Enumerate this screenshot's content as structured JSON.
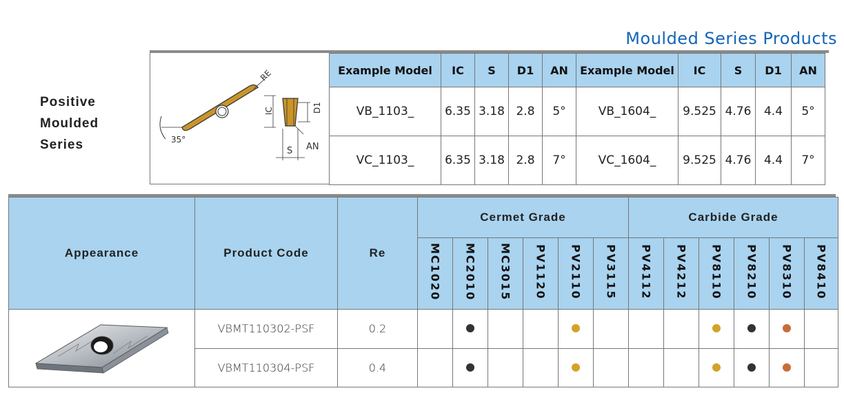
{
  "series_title": "Moulded Series Products",
  "side_label": [
    "Positive",
    "Moulded",
    "Series"
  ],
  "diagram": {
    "angle_label": "35°",
    "labels": {
      "re": "RE",
      "ic": "IC",
      "d1": "D1",
      "s": "S",
      "an": "AN"
    }
  },
  "spec_table": {
    "headers": [
      "Example Model",
      "IC",
      "S",
      "D1",
      "AN",
      "Example Model",
      "IC",
      "S",
      "D1",
      "AN"
    ],
    "rows": [
      [
        "VB_1103_",
        "6.35",
        "3.18",
        "2.8",
        "5°",
        "VB_1604_",
        "9.525",
        "4.76",
        "4.4",
        "5°"
      ],
      [
        "VC_1103_",
        "6.35",
        "3.18",
        "2.8",
        "7°",
        "VC_1604_",
        "9.525",
        "4.76",
        "4.4",
        "7°"
      ]
    ]
  },
  "product_table": {
    "headers": {
      "appearance": "Appearance",
      "product_code": "Product Code",
      "re": "Re",
      "cermet": "Cermet Grade",
      "carbide": "Carbide Grade"
    },
    "cermet_grades": [
      "MC1020",
      "MC2010",
      "MC3015",
      "PV1120",
      "PV2110",
      "PV3115"
    ],
    "carbide_grades": [
      "PV4112",
      "PV4212",
      "PV8110",
      "PV8210",
      "PV8310",
      "PV8410"
    ],
    "colors": {
      "black": "#333333",
      "gold": "#d4a12a",
      "copper": "#c86d3a"
    },
    "rows": [
      {
        "code": "VBMT110302-PSF",
        "re": "0.2",
        "marks": [
          "",
          "black",
          "",
          "",
          "gold",
          "",
          "",
          "",
          "gold",
          "black",
          "copper",
          ""
        ]
      },
      {
        "code": "VBMT110304-PSF",
        "re": "0.4",
        "marks": [
          "",
          "black",
          "",
          "",
          "gold",
          "",
          "",
          "",
          "gold",
          "black",
          "copper",
          ""
        ]
      }
    ]
  }
}
